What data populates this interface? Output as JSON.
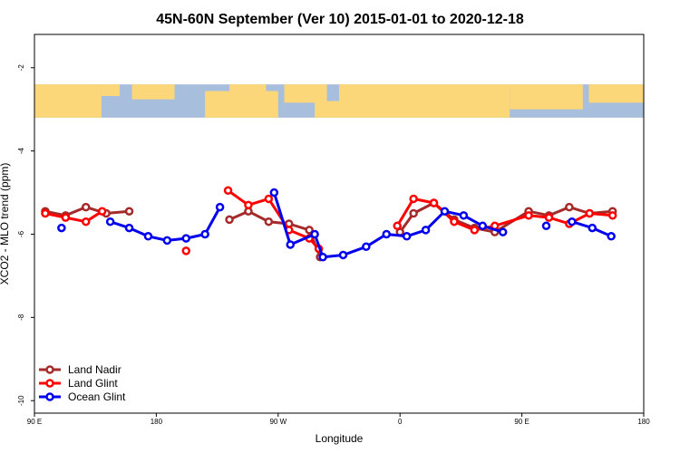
{
  "chart_data": {
    "type": "line",
    "title": "45N-60N September (Ver 10)   2015-01-01 to 2020-12-18",
    "xlabel": "Longitude",
    "ylabel": "XCO2 - MLO trend (ppm)",
    "xlim": [
      90,
      450
    ],
    "ylim": [
      -10.3,
      -3.7
    ],
    "ylim_full": [
      -10.3,
      -1.2
    ],
    "x_ticks": [
      {
        "value": 90,
        "label": "90 E"
      },
      {
        "value": 180,
        "label": "180"
      },
      {
        "value": 270,
        "label": "90 W"
      },
      {
        "value": 360,
        "label": "0"
      },
      {
        "value": 450,
        "label": "90 E"
      },
      {
        "value": 540,
        "label": "180"
      }
    ],
    "x_domain": [
      90,
      540
    ],
    "y_ticks": [
      -2,
      -4,
      -6,
      -8,
      -10
    ],
    "map_strip": {
      "y_top": -2.4,
      "y_bottom": -3.2,
      "ocean_color": "#a8bedd",
      "land_color": "#fcd77a"
    },
    "legend": {
      "position": "bottom-left"
    },
    "series": [
      {
        "name": "Land Nadir",
        "color": "#a52a2a",
        "points": [
          [
            98,
            -5.45
          ],
          [
            113,
            -5.55
          ],
          [
            128,
            -5.35
          ],
          [
            143,
            -5.5
          ],
          [
            160,
            -5.45
          ],
          null,
          [
            234,
            -5.65
          ],
          [
            248,
            -5.45
          ],
          [
            263,
            -5.7
          ],
          [
            278,
            -5.75
          ],
          [
            293,
            -5.9
          ],
          [
            301,
            -6.55
          ],
          null,
          [
            360,
            -5.95
          ],
          [
            370,
            -5.5
          ],
          [
            385,
            -5.25
          ],
          [
            400,
            -5.65
          ],
          [
            415,
            -5.85
          ],
          [
            430,
            -5.95
          ],
          [
            455,
            -5.45
          ],
          [
            470,
            -5.55
          ],
          [
            485,
            -5.35
          ],
          [
            500,
            -5.5
          ],
          [
            517,
            -5.45
          ]
        ]
      },
      {
        "name": "Land Glint",
        "color": "#ff0000",
        "points": [
          [
            98,
            -5.5
          ],
          [
            113,
            -5.6
          ],
          [
            128,
            -5.7
          ],
          [
            140,
            -5.45
          ],
          null,
          [
            202,
            -6.4
          ],
          null,
          [
            233,
            -4.95
          ],
          [
            248,
            -5.3
          ],
          [
            263,
            -5.15
          ],
          [
            278,
            -5.9
          ],
          [
            293,
            -6.1
          ],
          [
            300,
            -6.35
          ],
          null,
          [
            358,
            -5.8
          ],
          [
            370,
            -5.15
          ],
          [
            385,
            -5.25
          ],
          [
            400,
            -5.7
          ],
          [
            415,
            -5.9
          ],
          [
            430,
            -5.8
          ],
          [
            455,
            -5.55
          ],
          [
            470,
            -5.6
          ],
          [
            485,
            -5.75
          ],
          [
            500,
            -5.5
          ],
          [
            517,
            -5.55
          ]
        ]
      },
      {
        "name": "Ocean Glint",
        "color": "#0000ee",
        "points": [
          [
            110,
            -5.85
          ],
          null,
          [
            146,
            -5.7
          ],
          [
            160,
            -5.85
          ],
          [
            174,
            -6.05
          ],
          [
            188,
            -6.15
          ],
          [
            202,
            -6.1
          ],
          [
            216,
            -6.0
          ],
          [
            227,
            -5.35
          ],
          null,
          [
            267,
            -5.0
          ],
          [
            279,
            -6.25
          ],
          [
            297,
            -6.0
          ],
          [
            303,
            -6.55
          ],
          [
            318,
            -6.5
          ],
          [
            335,
            -6.3
          ],
          [
            350,
            -6.0
          ],
          [
            365,
            -6.05
          ],
          [
            379,
            -5.9
          ],
          [
            393,
            -5.45
          ],
          [
            407,
            -5.55
          ],
          [
            421,
            -5.8
          ],
          [
            436,
            -5.95
          ],
          null,
          [
            468,
            -5.8
          ],
          null,
          [
            487,
            -5.7
          ],
          [
            502,
            -5.85
          ],
          [
            516,
            -6.05
          ]
        ]
      }
    ]
  }
}
